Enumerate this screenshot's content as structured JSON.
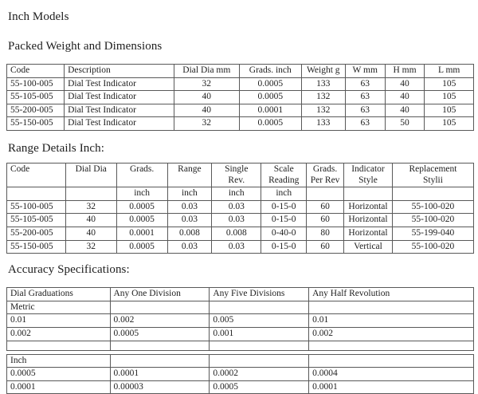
{
  "doc": {
    "title": "Inch Models",
    "packed": {
      "heading": "Packed Weight and Dimensions",
      "columns": [
        "Code",
        "Description",
        "Dial Dia mm",
        "Grads. inch",
        "Weight g",
        "W mm",
        "H mm",
        "L mm"
      ],
      "rows": [
        [
          "55-100-005",
          "Dial Test Indicator",
          "32",
          "0.0005",
          "133",
          "63",
          "40",
          "105"
        ],
        [
          "55-105-005",
          "Dial Test Indicator",
          "40",
          "0.0005",
          "132",
          "63",
          "40",
          "105"
        ],
        [
          "55-200-005",
          "Dial Test Indicator",
          "40",
          "0.0001",
          "132",
          "63",
          "40",
          "105"
        ],
        [
          "55-150-005",
          "Dial Test Indicator",
          "32",
          "0.0005",
          "133",
          "63",
          "50",
          "105"
        ]
      ]
    },
    "range": {
      "heading": "Range Details Inch:",
      "columns": [
        "Code",
        "Dial Dia",
        "Grads.",
        "Range",
        "Single\nRev.",
        "Scale\nReading",
        "Grads.\nPer Rev",
        "Indicator\nStyle",
        "Replacement\nStylii"
      ],
      "rows": [
        [
          "",
          "",
          "inch",
          "inch",
          "inch",
          "inch",
          "",
          "",
          ""
        ],
        [
          "55-100-005",
          "32",
          "0.0005",
          "0.03",
          "0.03",
          "0-15-0",
          "60",
          "Horizontal",
          "55-100-020"
        ],
        [
          "55-105-005",
          "40",
          "0.0005",
          "0.03",
          "0.03",
          "0-15-0",
          "60",
          "Horizontal",
          "55-100-020"
        ],
        [
          "55-200-005",
          "40",
          "0.0001",
          "0.008",
          "0.008",
          "0-40-0",
          "80",
          "Horizontal",
          "55-199-040"
        ],
        [
          "55-150-005",
          "32",
          "0.0005",
          "0.03",
          "0.03",
          "0-15-0",
          "60",
          "Vertical",
          "55-100-020"
        ]
      ]
    },
    "accuracy": {
      "heading": "Accuracy Specifications:",
      "columns": [
        "Dial Graduations",
        "Any One Division",
        "Any Five Divisions",
        "Any Half Revolution"
      ],
      "metric_rows": [
        [
          "Metric",
          "",
          "",
          ""
        ],
        [
          "0.01",
          "0.002",
          "0.005",
          "0.01"
        ],
        [
          "0.002",
          "0.0005",
          "0.001",
          "0.002"
        ],
        [
          "",
          "",
          "",
          ""
        ]
      ],
      "inch_rows": [
        [
          "Inch",
          "",
          "",
          ""
        ],
        [
          "0.0005",
          "0.0001",
          "0.0002",
          "0.0004"
        ],
        [
          "0.0001",
          "0.00003",
          "0.0005",
          "0.0001"
        ]
      ]
    }
  }
}
